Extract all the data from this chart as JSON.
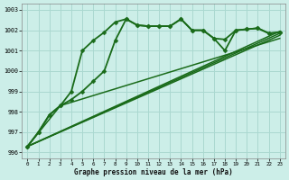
{
  "xlabel": "Graphe pression niveau de la mer (hPa)",
  "ylim": [
    995.7,
    1003.3
  ],
  "xlim": [
    -0.5,
    23.5
  ],
  "yticks": [
    996,
    997,
    998,
    999,
    1000,
    1001,
    1002,
    1003
  ],
  "xticks": [
    0,
    1,
    2,
    3,
    4,
    5,
    6,
    7,
    8,
    9,
    10,
    11,
    12,
    13,
    14,
    15,
    16,
    17,
    18,
    19,
    20,
    21,
    22,
    23
  ],
  "bg_color": "#cceee8",
  "grid_color": "#aad8d0",
  "line_color": "#1a6b1a",
  "series": [
    {
      "x": [
        0,
        1,
        2,
        3,
        4,
        5,
        6,
        7,
        8,
        9,
        10,
        11,
        12,
        13,
        14,
        15,
        16,
        17,
        18,
        19,
        20,
        21,
        22,
        23
      ],
      "y": [
        996.3,
        997.0,
        997.85,
        998.3,
        999.0,
        1001.0,
        1001.5,
        1001.9,
        1002.4,
        1002.55,
        1002.25,
        1002.2,
        1002.2,
        1002.2,
        1002.55,
        1002.0,
        1002.0,
        1001.6,
        1001.55,
        1002.0,
        1002.05,
        1002.1,
        1001.85,
        1001.9
      ],
      "marker": "D",
      "lw": 1.3,
      "ms": 2.5,
      "has_marker": true
    },
    {
      "x": [
        0,
        1,
        2,
        3,
        4,
        5,
        6,
        7,
        8,
        9,
        10,
        11,
        12,
        13,
        14,
        15,
        16,
        17,
        18,
        19,
        20,
        21,
        22,
        23
      ],
      "y": [
        996.3,
        997.0,
        997.85,
        998.3,
        998.6,
        999.0,
        999.5,
        1000.0,
        1001.5,
        1002.55,
        1002.25,
        1002.2,
        1002.2,
        1002.2,
        1002.55,
        1002.0,
        1002.0,
        1001.6,
        1001.0,
        1002.0,
        1002.05,
        1002.1,
        1001.85,
        1001.9
      ],
      "marker": "D",
      "lw": 1.3,
      "ms": 2.5,
      "has_marker": true
    },
    {
      "x": [
        0,
        23
      ],
      "y": [
        996.3,
        1001.95
      ],
      "marker": null,
      "lw": 1.1,
      "has_marker": false
    },
    {
      "x": [
        0,
        23
      ],
      "y": [
        996.3,
        1001.85
      ],
      "marker": null,
      "lw": 1.1,
      "has_marker": false
    },
    {
      "x": [
        0,
        23
      ],
      "y": [
        996.3,
        1001.75
      ],
      "marker": null,
      "lw": 1.1,
      "has_marker": false
    },
    {
      "x": [
        0,
        3,
        23
      ],
      "y": [
        996.3,
        998.3,
        1001.6
      ],
      "marker": null,
      "lw": 1.1,
      "has_marker": false
    }
  ]
}
